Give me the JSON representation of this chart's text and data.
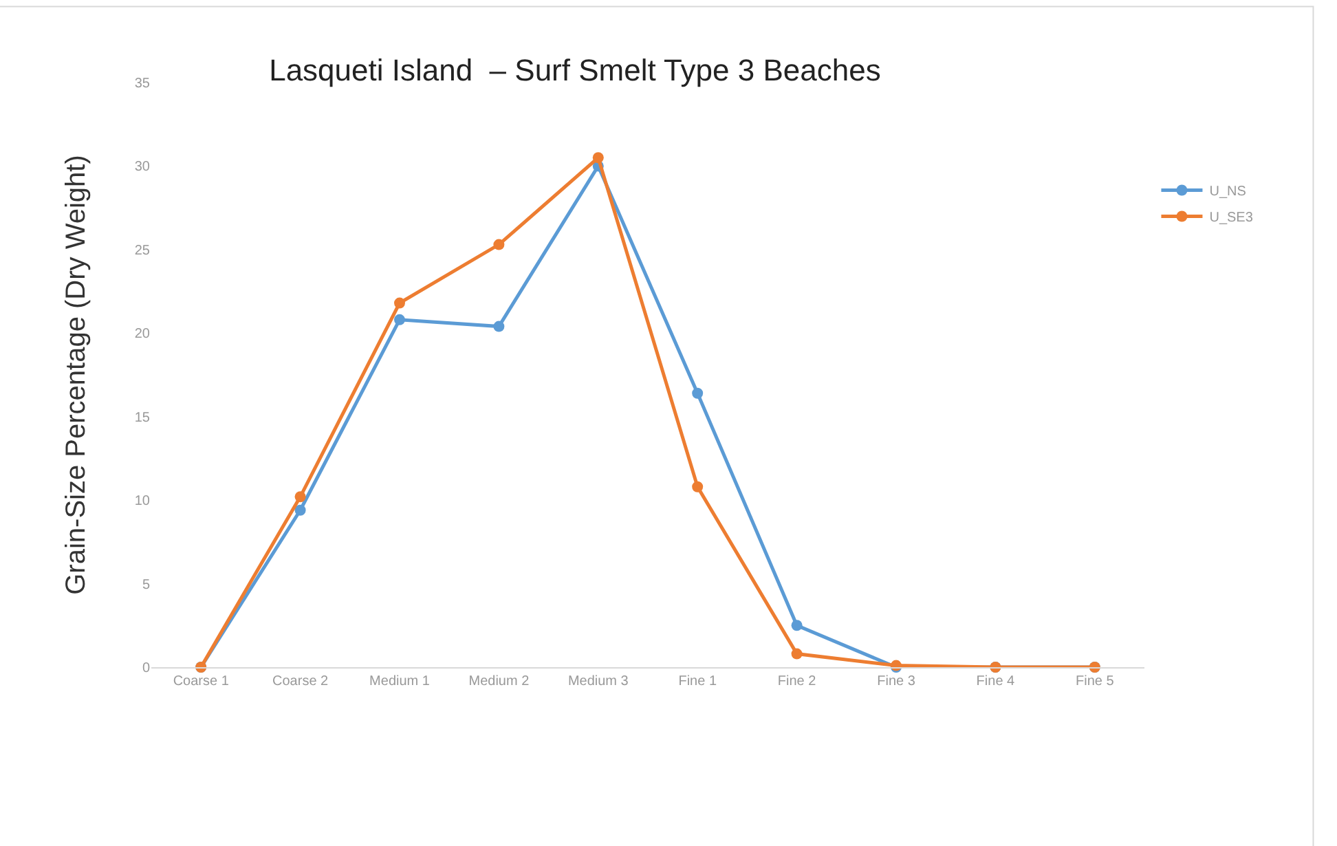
{
  "chart_data": {
    "type": "line",
    "title": "Lasqueti Island  – Surf Smelt Type 3 Beaches",
    "ylabel": "Grain-Size Percentage (Dry Weight)",
    "categories": [
      "Coarse 1",
      "Coarse 2",
      "Medium 1",
      "Medium 2",
      "Medium 3",
      "Fine 1",
      "Fine 2",
      "Fine 3",
      "Fine 4",
      "Fine 5"
    ],
    "series": [
      {
        "name": "U_NS",
        "color": "#5b9bd5",
        "values": [
          0,
          9.4,
          20.8,
          20.4,
          30.0,
          16.4,
          2.5,
          0,
          0,
          0
        ]
      },
      {
        "name": "U_SE3",
        "color": "#ed7d31",
        "values": [
          0,
          10.2,
          21.8,
          25.3,
          30.5,
          10.8,
          0.8,
          0.1,
          0,
          0
        ]
      }
    ],
    "ylim": [
      0,
      35
    ],
    "yticks": [
      0,
      5,
      10,
      15,
      20,
      25,
      30,
      35
    ],
    "legend": "right",
    "marker": "circle",
    "line_style": "solid"
  }
}
